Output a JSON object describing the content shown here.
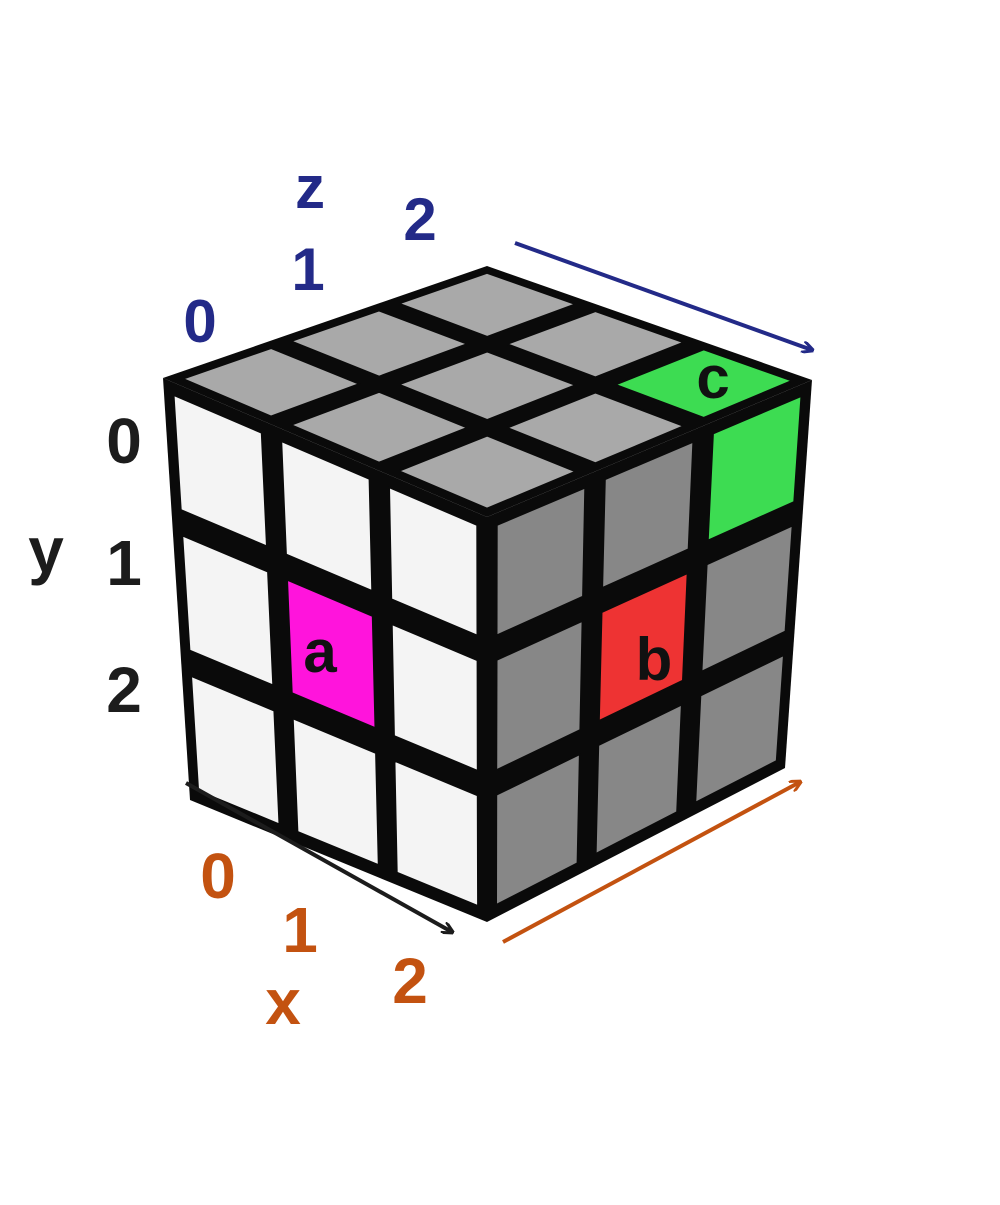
{
  "colors": {
    "front": "#f4f4f4",
    "top": "#a9a9a9",
    "side": "#878787",
    "edge": "#0a0a0a",
    "highlight_a": "#ff14dc",
    "highlight_b": "#ee3333",
    "highlight_c": "#3ddc52",
    "x_axis": "#c35210",
    "y_axis": "#1c1c1c",
    "z_axis": "#232a88",
    "sticker_label": "#111111"
  },
  "cube": {
    "size": 3,
    "front_face": {
      "highlight": {
        "col": 1,
        "row": 1,
        "label": "a",
        "color_key": "highlight_a"
      }
    },
    "right_face": {
      "highlight": {
        "col": 1,
        "row": 1,
        "label": "b",
        "color_key": "highlight_b"
      }
    },
    "top_face": {
      "highlight": {
        "x": 2,
        "z": 2,
        "label": "c",
        "color_key": "highlight_c"
      }
    },
    "right_face_extra": {
      "col": 2,
      "row": 0,
      "color_key": "highlight_c"
    }
  },
  "axes": {
    "x": {
      "name": "x",
      "ticks": [
        "0",
        "1",
        "2"
      ]
    },
    "y": {
      "name": "y",
      "ticks": [
        "0",
        "1",
        "2"
      ]
    },
    "z": {
      "name": "z",
      "ticks": [
        "0",
        "1",
        "2"
      ]
    }
  }
}
